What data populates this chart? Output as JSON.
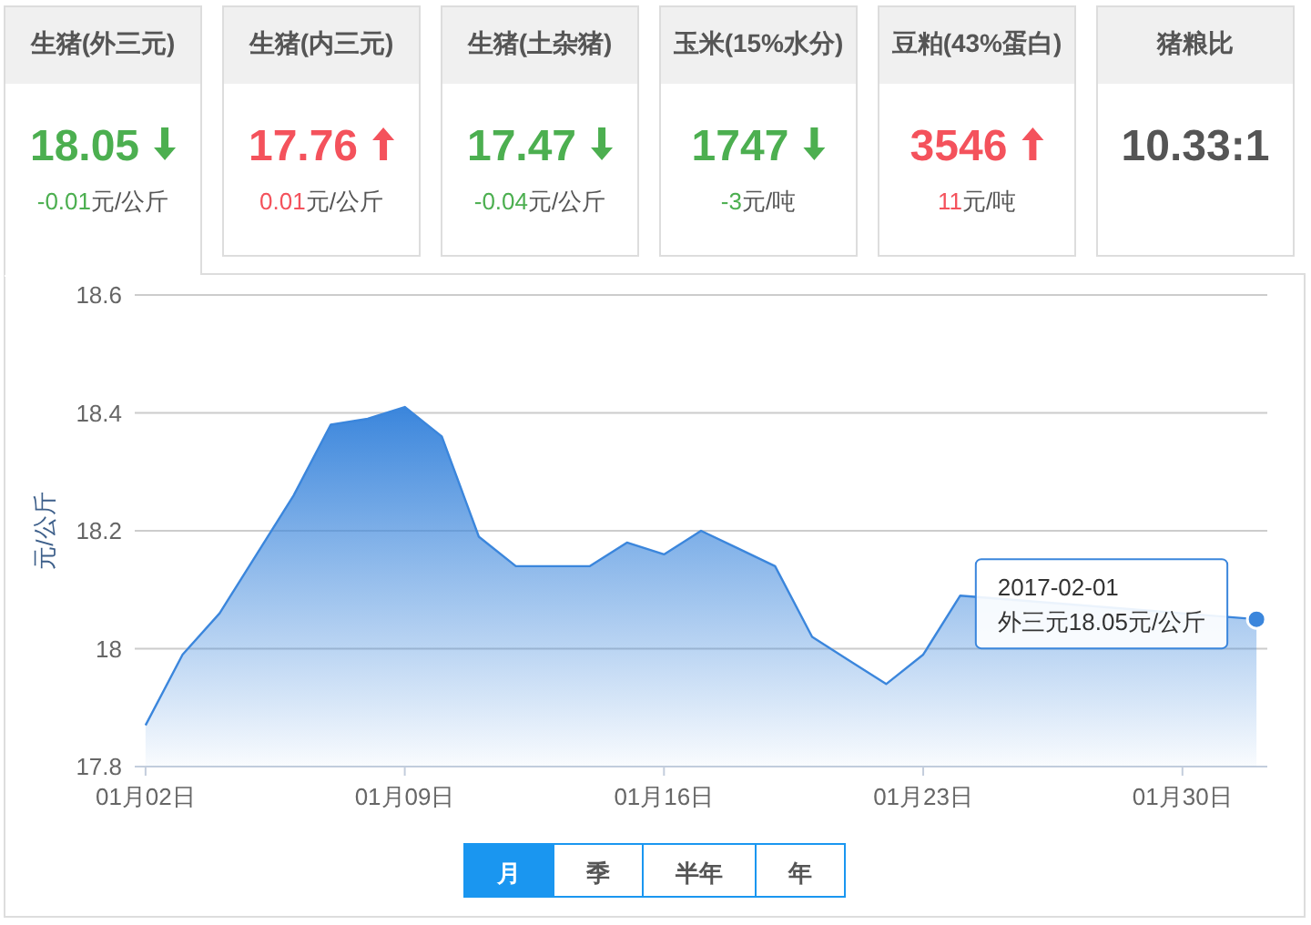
{
  "chart_data": [
    {
      "type": "other",
      "categories": [
        "生猪(外三元)",
        "生猪(内三元)",
        "生猪(土杂猪)",
        "玉米(15%水分)",
        "豆粕(43%蛋白)",
        "猪粮比"
      ],
      "values": [
        -0.01,
        0.01,
        -0.04,
        -3,
        11,
        null
      ],
      "value_labels": [
        "-0.01元/公斤",
        "0.01元/公斤",
        "-0.04元/公斤",
        "-3元/吨",
        "11元/吨",
        null
      ],
      "annotations": [
        "18.05",
        "17.76",
        "17.47",
        "1747",
        "3546",
        "10.33:1"
      ]
    },
    {
      "type": "area",
      "ylabel": "元/公斤",
      "x": [
        "2017-01-02",
        "2017-01-03",
        "2017-01-04",
        "2017-01-05",
        "2017-01-06",
        "2017-01-07",
        "2017-01-08",
        "2017-01-09",
        "2017-01-10",
        "2017-01-11",
        "2017-01-12",
        "2017-01-13",
        "2017-01-14",
        "2017-01-15",
        "2017-01-16",
        "2017-01-17",
        "2017-01-18",
        "2017-01-19",
        "2017-01-20",
        "2017-01-21",
        "2017-01-22",
        "2017-01-23",
        "2017-01-24",
        "2017-01-25",
        "2017-01-26",
        "2017-01-27",
        "2017-01-28",
        "2017-01-29",
        "2017-01-30",
        "2017-01-31",
        "2017-02-01"
      ],
      "series": [
        {
          "color": "#3b86dc",
          "values": [
            17.87,
            17.99,
            18.06,
            18.16,
            18.26,
            18.38,
            18.39,
            18.41,
            18.36,
            18.19,
            18.14,
            18.14,
            18.14,
            18.18,
            18.16,
            18.2,
            18.17,
            18.14,
            18.02,
            17.98,
            17.94,
            17.99,
            18.09,
            null,
            null,
            null,
            null,
            null,
            null,
            null,
            18.05
          ]
        }
      ],
      "xlim": [
        "2017-01-01T17:00",
        "2017-02-01T07:00"
      ],
      "ylim": [
        17.8,
        18.6
      ],
      "yticks": [
        17.8,
        18,
        18.2,
        18.4,
        18.6
      ],
      "xticks": [
        {
          "value": "2017-01-02",
          "label": "01月02日"
        },
        {
          "value": "2017-01-09",
          "label": "01月09日"
        },
        {
          "value": "2017-01-16",
          "label": "01月16日"
        },
        {
          "value": "2017-01-23",
          "label": "01月23日"
        },
        {
          "value": "2017-01-30",
          "label": "01月30日"
        }
      ],
      "grid": "y",
      "annotations": [
        {
          "text": "2017-02-01\n外三元18.05元/公斤",
          "x": "2017-02-01",
          "y": 18.05
        },
        "月",
        "季",
        "半年",
        "年"
      ]
    }
  ]
}
